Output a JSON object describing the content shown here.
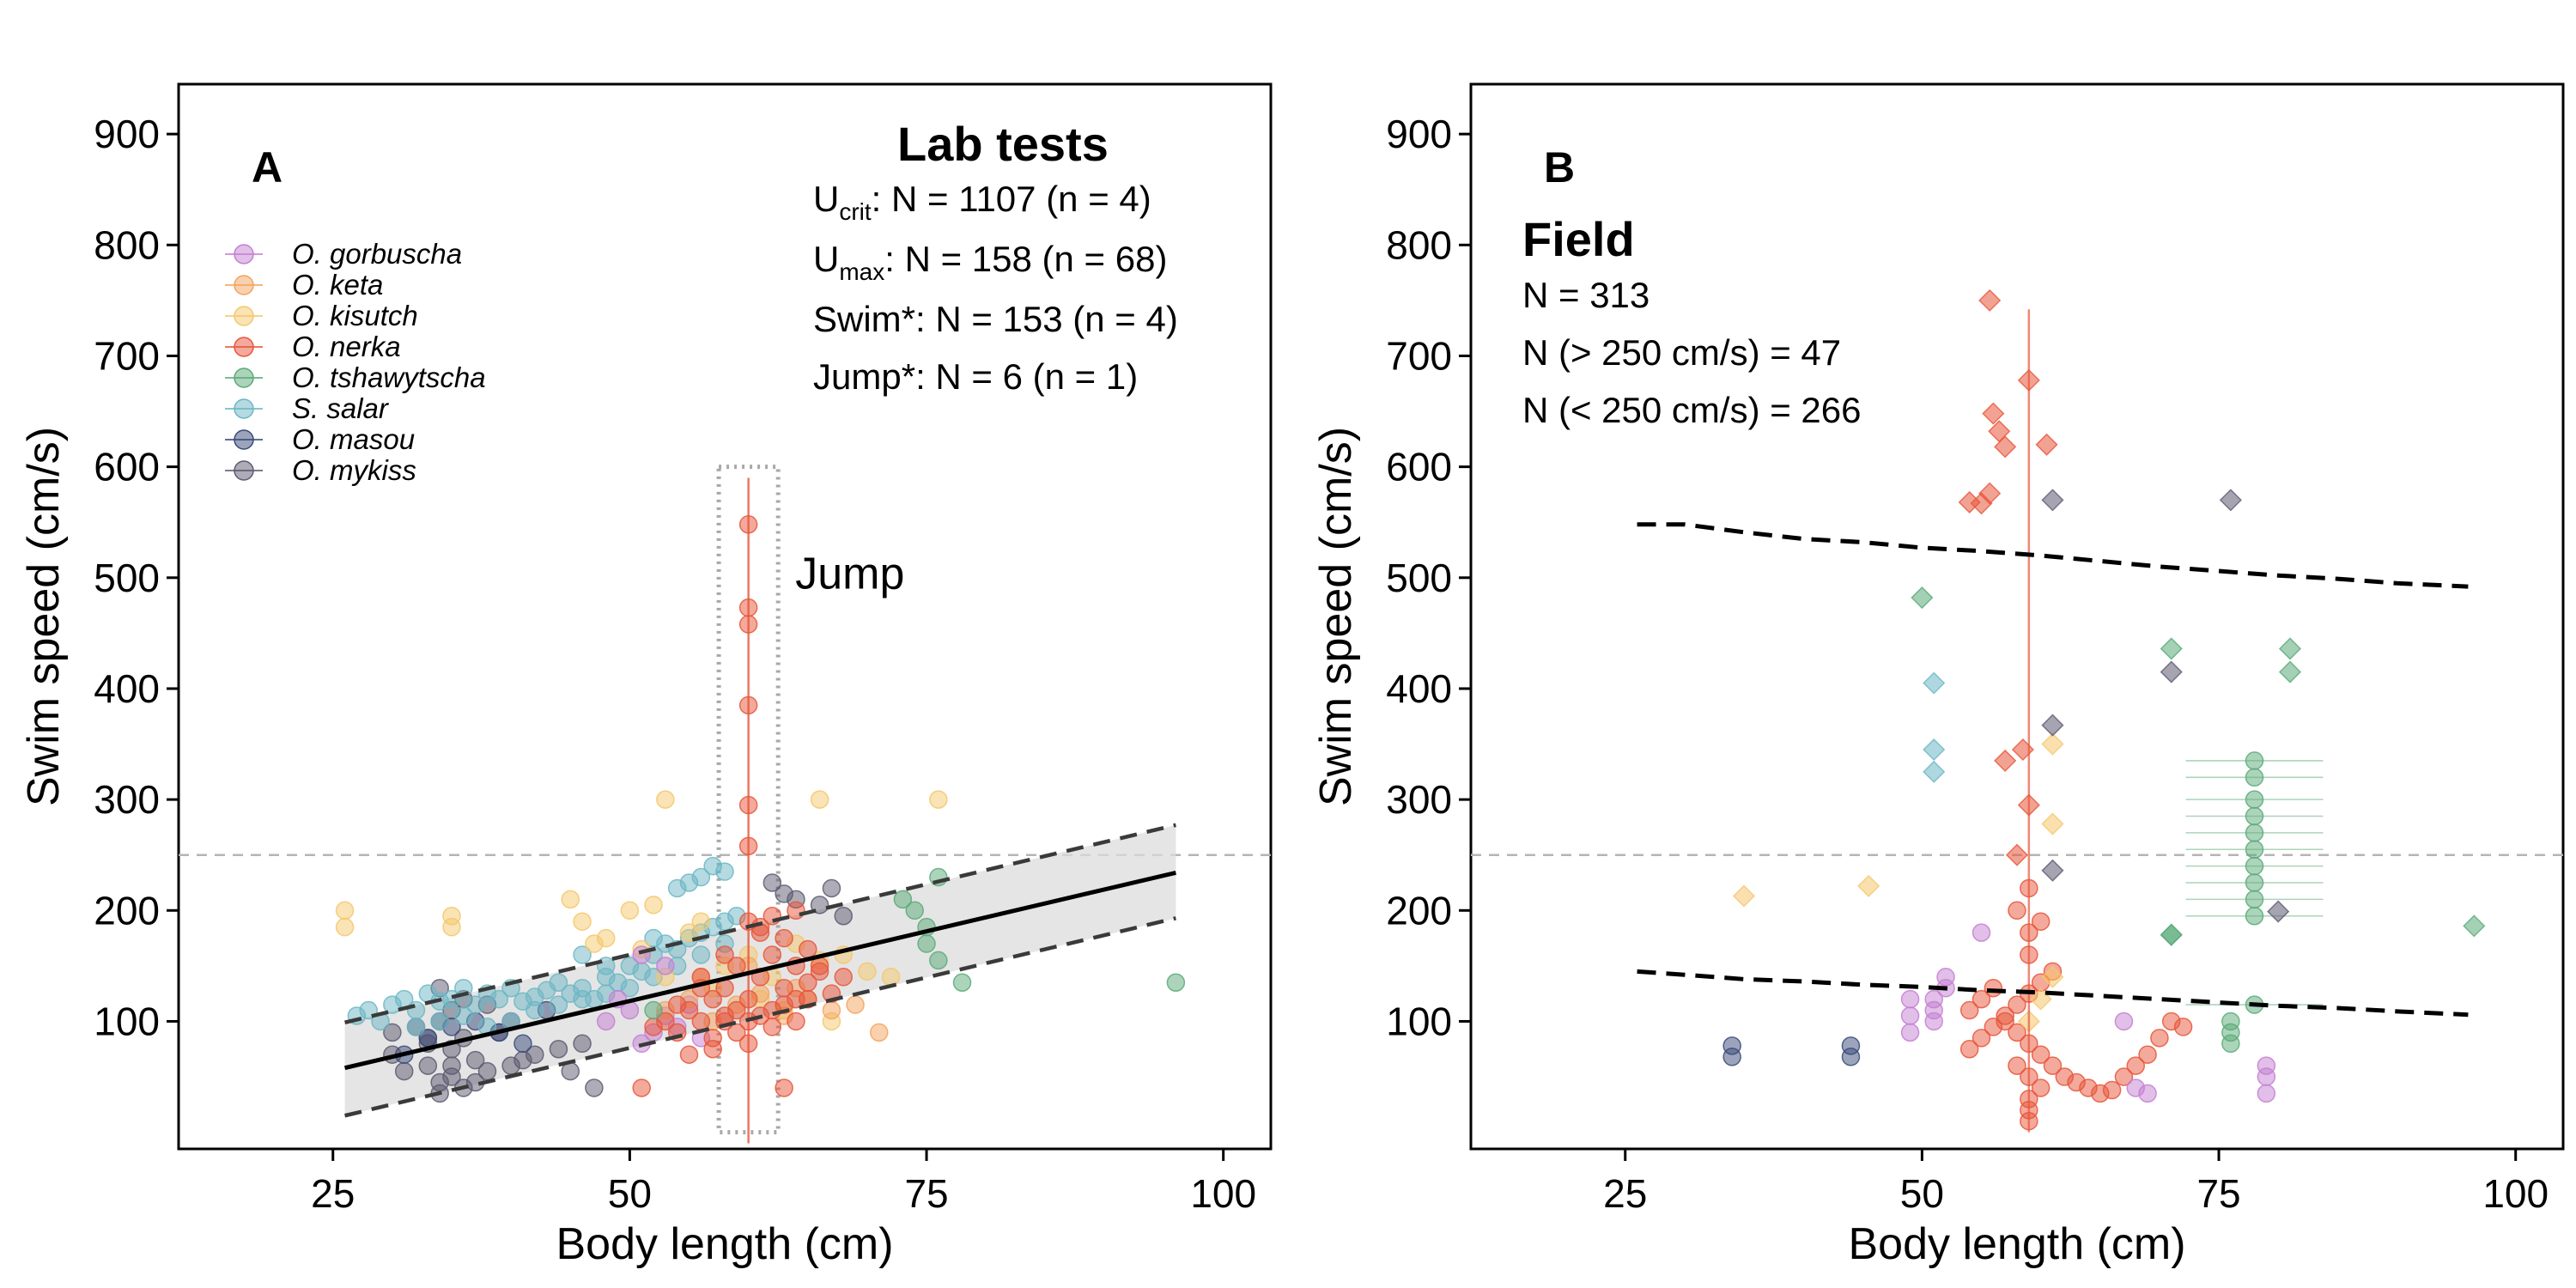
{
  "chart_data": [
    {
      "type": "scatter",
      "panel": "A",
      "xlabel": "Body length (cm)",
      "ylabel": "Swim speed (cm/s)",
      "xlim": [
        12,
        104
      ],
      "ylim": [
        -15,
        945
      ],
      "xticks": [
        25,
        50,
        75,
        100
      ],
      "yticks": [
        100,
        200,
        300,
        400,
        500,
        600,
        700,
        800,
        900
      ],
      "reference_line_y": 250,
      "heading": "Lab tests",
      "stats": [
        {
          "base": "U",
          "sub": "crit",
          "text": ": N = 1107  (n = 4)"
        },
        {
          "base": "U",
          "sub": "max",
          "text": ": N = 158  (n = 68)"
        },
        {
          "base": "Swim*",
          "sub": "",
          "text": ": N = 153  (n = 4)"
        },
        {
          "base": "Jump*",
          "sub": "",
          "text": ": N = 6  (n = 1)"
        }
      ],
      "annotation": "Jump",
      "jump_box": {
        "x": [
          57.5,
          62.5
        ],
        "y": [
          0,
          600
        ]
      },
      "legend": [
        {
          "name": "O. gorbuscha",
          "color": "#c47fd1"
        },
        {
          "name": "O. keta",
          "color": "#f4a35e"
        },
        {
          "name": "O. kisutch",
          "color": "#f5c76b"
        },
        {
          "name": "O. nerka",
          "color": "#e8553a"
        },
        {
          "name": "O. tshawytscha",
          "color": "#5aaa78"
        },
        {
          "name": "S. salar",
          "color": "#6bb6c4"
        },
        {
          "name": "O. masou",
          "color": "#3a4a7a"
        },
        {
          "name": "O. mykiss",
          "color": "#5c5a70"
        }
      ],
      "regression": {
        "x": [
          26,
          96
        ],
        "y": [
          58,
          234
        ],
        "ci_lower_y": [
          15,
          193
        ],
        "ci_upper_y": [
          99,
          277
        ]
      },
      "series": [
        {
          "name": "O. mykiss",
          "color": "#5c5a70",
          "x": [
            30,
            31,
            32,
            33,
            33,
            34,
            34,
            35,
            35,
            35,
            36,
            36,
            37,
            38,
            39,
            40,
            42,
            44,
            46,
            47,
            36,
            34,
            38,
            40,
            30,
            33,
            35,
            37,
            34,
            41,
            45,
            62,
            64,
            66,
            68,
            63,
            67
          ],
          "y": [
            70,
            55,
            95,
            80,
            60,
            100,
            45,
            75,
            50,
            110,
            85,
            40,
            65,
            55,
            90,
            60,
            70,
            75,
            80,
            40,
            120,
            130,
            115,
            100,
            90,
            85,
            60,
            45,
            35,
            65,
            55,
            225,
            210,
            205,
            195,
            215,
            220
          ]
        },
        {
          "name": "O. masou",
          "color": "#3a4a7a",
          "x": [
            31,
            33,
            35,
            37,
            39,
            41,
            43
          ],
          "y": [
            70,
            85,
            95,
            100,
            90,
            80,
            110
          ]
        },
        {
          "name": "S. salar",
          "color": "#6bb6c4",
          "x": [
            27,
            28,
            29,
            30,
            31,
            32,
            33,
            34,
            35,
            36,
            37,
            38,
            39,
            40,
            41,
            42,
            43,
            44,
            45,
            46,
            47,
            48,
            49,
            50,
            51,
            52,
            53,
            54,
            55,
            56,
            57,
            58,
            59,
            32,
            34,
            36,
            38,
            40,
            42,
            44,
            46,
            48,
            50,
            52,
            54,
            56,
            58,
            55,
            56,
            57,
            58,
            54,
            46,
            48,
            52
          ],
          "y": [
            105,
            110,
            100,
            115,
            120,
            110,
            125,
            118,
            120,
            130,
            115,
            125,
            120,
            130,
            118,
            122,
            128,
            135,
            125,
            130,
            120,
            140,
            135,
            150,
            145,
            160,
            170,
            165,
            175,
            180,
            185,
            190,
            195,
            95,
            100,
            105,
            95,
            100,
            110,
            115,
            120,
            125,
            130,
            140,
            150,
            160,
            170,
            225,
            230,
            240,
            235,
            220,
            160,
            150,
            175
          ]
        },
        {
          "name": "O. kisutch",
          "color": "#f5c76b",
          "x": [
            26,
            26,
            35,
            35,
            45,
            46,
            47,
            50,
            52,
            53,
            55,
            58,
            60,
            62,
            64,
            66,
            68,
            70,
            72,
            76,
            48,
            56,
            53,
            66,
            51,
            57,
            61,
            63,
            67
          ],
          "y": [
            200,
            185,
            195,
            185,
            210,
            190,
            170,
            200,
            205,
            300,
            180,
            150,
            160,
            140,
            170,
            155,
            160,
            145,
            140,
            300,
            175,
            190,
            140,
            300,
            165,
            130,
            120,
            110,
            100
          ]
        },
        {
          "name": "O. gorbuscha",
          "color": "#c47fd1",
          "x": [
            48,
            49,
            50,
            51,
            52,
            53,
            54,
            55,
            56,
            51,
            53
          ],
          "y": [
            100,
            120,
            110,
            80,
            90,
            105,
            95,
            115,
            85,
            160,
            150
          ]
        },
        {
          "name": "O. keta",
          "color": "#f4a35e",
          "x": [
            53,
            55,
            57,
            59,
            61,
            63,
            65,
            67,
            69,
            71,
            56,
            60,
            64
          ],
          "y": [
            110,
            120,
            100,
            115,
            125,
            105,
            120,
            110,
            115,
            90,
            140,
            150,
            130
          ]
        },
        {
          "name": "O. nerka",
          "color": "#e8553a",
          "x": [
            51,
            52,
            53,
            54,
            55,
            56,
            56,
            57,
            57,
            58,
            58,
            59,
            59,
            60,
            60,
            61,
            61,
            62,
            62,
            63,
            63,
            64,
            64,
            65,
            65,
            66,
            67,
            68,
            55,
            57,
            59,
            61,
            63,
            65,
            58,
            60,
            62,
            64,
            56,
            60,
            62,
            66,
            54,
            58,
            63,
            64,
            61
          ],
          "y": [
            40,
            95,
            100,
            90,
            110,
            100,
            140,
            120,
            85,
            130,
            100,
            150,
            110,
            120,
            80,
            140,
            105,
            160,
            95,
            130,
            115,
            150,
            100,
            135,
            120,
            145,
            125,
            140,
            70,
            75,
            90,
            180,
            175,
            165,
            160,
            100,
            110,
            120,
            130,
            190,
            195,
            150,
            115,
            105,
            40,
            200,
            185
          ]
        },
        {
          "name": "O. nerka jump",
          "color": "#e8553a",
          "x": [
            60,
            60,
            60,
            60,
            60,
            60
          ],
          "y": [
            548,
            473,
            458,
            385,
            295,
            258
          ]
        },
        {
          "name": "O. tshawytscha",
          "color": "#5aaa78",
          "x": [
            52,
            73,
            74,
            75,
            75,
            76,
            76,
            78,
            96
          ],
          "y": [
            110,
            210,
            200,
            185,
            170,
            230,
            155,
            135,
            135
          ]
        }
      ]
    },
    {
      "type": "scatter",
      "panel": "B",
      "xlabel": "Body length (cm)",
      "ylabel": "Swim speed (cm/s)",
      "xlim": [
        12,
        104
      ],
      "ylim": [
        -15,
        945
      ],
      "xticks": [
        25,
        50,
        75,
        100
      ],
      "yticks": [
        100,
        200,
        300,
        400,
        500,
        600,
        700,
        800,
        900
      ],
      "reference_line_y": 250,
      "heading": "Field",
      "stats": [
        {
          "base": "N = 313",
          "sub": "",
          "text": ""
        },
        {
          "base": "N (> 250 cm/s) = 47",
          "sub": "",
          "text": ""
        },
        {
          "base": "N (< 250 cm/s) = 266",
          "sub": "",
          "text": ""
        }
      ],
      "upper_dashed": {
        "x": [
          26,
          30,
          35,
          40,
          45,
          50,
          55,
          60,
          65,
          70,
          75,
          80,
          85,
          90,
          96
        ],
        "y": [
          548,
          548,
          541,
          535,
          532,
          527,
          524,
          520,
          515,
          510,
          506,
          502,
          499,
          495,
          492
        ]
      },
      "lower_dashed": {
        "x": [
          26,
          30,
          35,
          40,
          45,
          50,
          55,
          60,
          65,
          70,
          75,
          80,
          85,
          90,
          96
        ],
        "y": [
          145,
          142,
          138,
          136,
          133,
          131,
          128,
          126,
          123,
          120,
          117,
          114,
          112,
          109,
          106
        ]
      },
      "series": [
        {
          "name": "O. nerka",
          "color": "#e8553a",
          "x": [
            55.7,
            56,
            56.5,
            57,
            55.7,
            55,
            54,
            60.5,
            59,
            58.5,
            59,
            57,
            58,
            59,
            54,
            55,
            56,
            57,
            58,
            59,
            60,
            61,
            62,
            63,
            64,
            65,
            66,
            67,
            68,
            69,
            70,
            71,
            72,
            54,
            55,
            56,
            57,
            58,
            59,
            60,
            61,
            58,
            59,
            60,
            59,
            59,
            59,
            59,
            59,
            58,
            60
          ],
          "y": [
            750,
            648,
            632,
            618,
            576,
            567,
            568,
            620,
            678,
            345,
            295,
            335,
            250,
            220,
            110,
            120,
            130,
            100,
            90,
            80,
            70,
            60,
            50,
            45,
            40,
            35,
            38,
            50,
            60,
            70,
            85,
            100,
            95,
            75,
            85,
            95,
            105,
            115,
            125,
            135,
            145,
            60,
            50,
            40,
            30,
            20,
            10,
            160,
            180,
            200,
            190
          ]
        },
        {
          "name": "O. kisutch",
          "color": "#f5c76b",
          "x": [
            35,
            45.5,
            61,
            61,
            61,
            59,
            60
          ],
          "y": [
            213,
            222,
            278,
            350,
            140,
            100,
            120
          ]
        },
        {
          "name": "O. gorbuscha",
          "color": "#c47fd1",
          "x": [
            49,
            49,
            49,
            51,
            51,
            51,
            52,
            52,
            55,
            67,
            68,
            69,
            79,
            79,
            79
          ],
          "y": [
            90,
            105,
            120,
            110,
            100,
            120,
            130,
            140,
            180,
            100,
            40,
            35,
            35,
            50,
            60
          ]
        },
        {
          "name": "O. tshawytscha",
          "color": "#5aaa78",
          "x": [
            50,
            71,
            71,
            81,
            81,
            71,
            96.5,
            78,
            78,
            78,
            78,
            78,
            78,
            78,
            78,
            78,
            78,
            78,
            76,
            76,
            76
          ],
          "y": [
            482,
            436,
            178,
            436,
            415,
            178,
            186,
            335,
            320,
            300,
            285,
            270,
            255,
            240,
            225,
            210,
            195,
            115,
            90,
            80,
            100
          ]
        },
        {
          "name": "S. salar",
          "color": "#6bb6c4",
          "x": [
            51,
            51,
            51
          ],
          "y": [
            405,
            345,
            325
          ]
        },
        {
          "name": "O. mykiss",
          "color": "#5c5a70",
          "x": [
            61,
            61,
            71,
            76,
            61,
            80
          ],
          "y": [
            570,
            367,
            415,
            570,
            236,
            199
          ]
        },
        {
          "name": "O. masou",
          "color": "#3a4a7a",
          "x": [
            34,
            34,
            44,
            44
          ],
          "y": [
            78,
            68,
            78,
            68
          ]
        }
      ]
    }
  ]
}
